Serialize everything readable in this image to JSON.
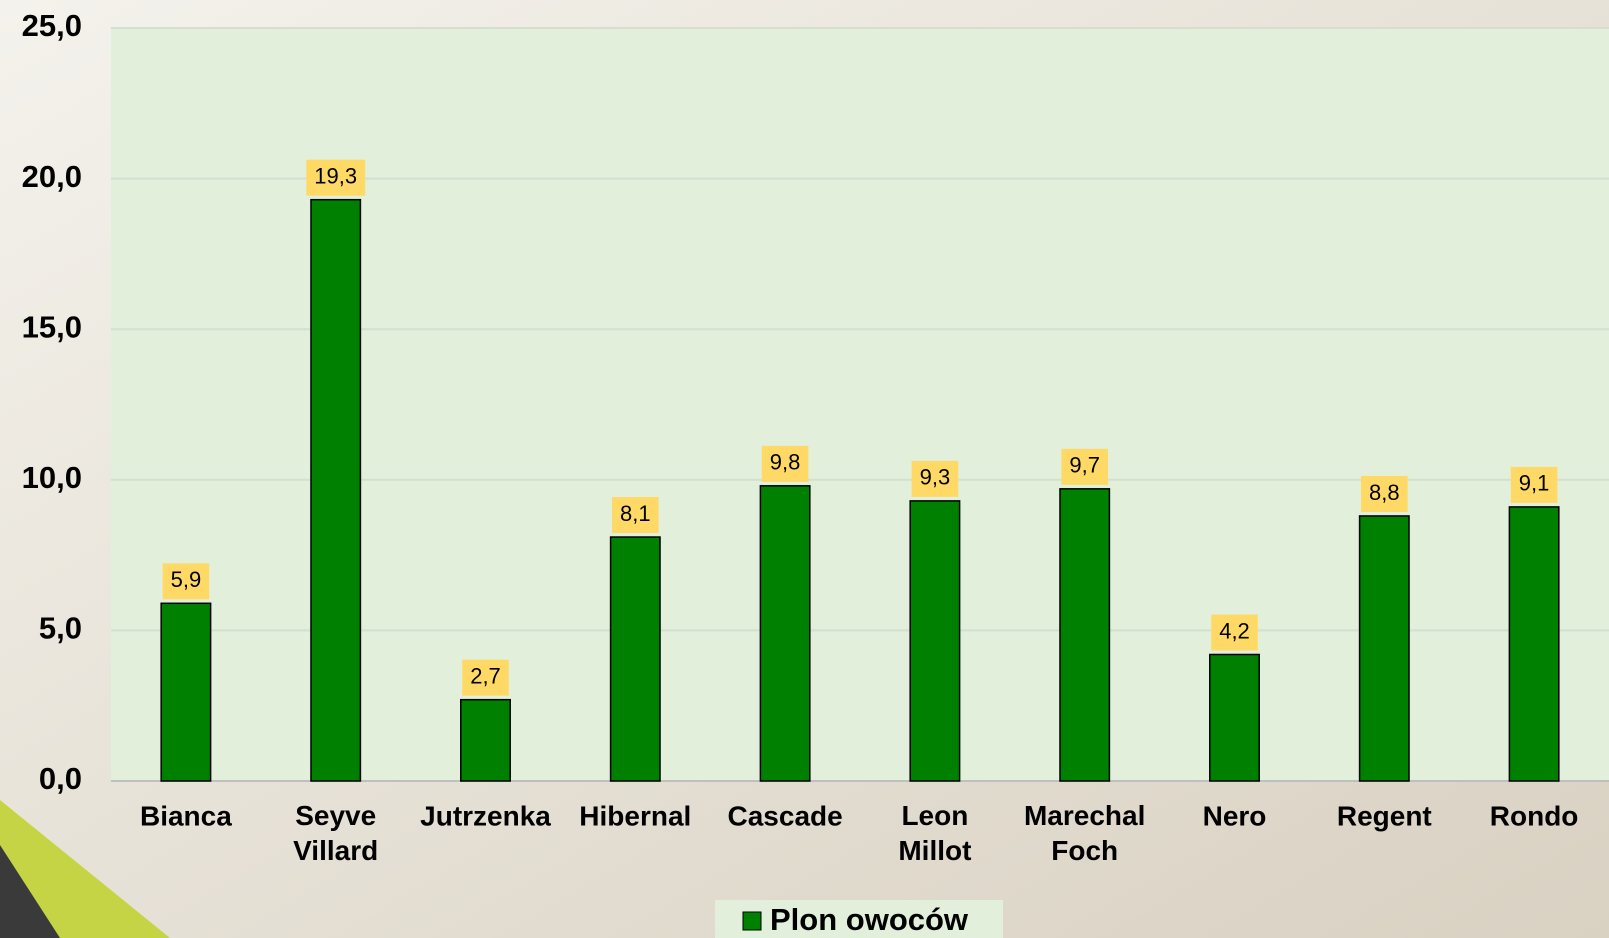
{
  "chart_data": {
    "type": "bar",
    "categories": [
      "Bianca",
      "Seyve Villard",
      "Jutrzenka",
      "Hibernal",
      "Cascade",
      "Leon Millot",
      "Marechal Foch",
      "Nero",
      "Regent",
      "Rondo"
    ],
    "series": [
      {
        "name": "Plon owoców",
        "color": "#008000",
        "values": [
          5.9,
          19.3,
          2.7,
          8.1,
          9.8,
          9.3,
          9.7,
          4.2,
          8.8,
          9.1
        ],
        "value_labels": [
          "5,9",
          "19,3",
          "2,7",
          "8,1",
          "9,8",
          "9,3",
          "9,7",
          "4,2",
          "8,8",
          "9,1"
        ]
      }
    ],
    "ylim": [
      0,
      25
    ],
    "yticks": [
      {
        "value": 0,
        "label": "0,0"
      },
      {
        "value": 5,
        "label": "5,0"
      },
      {
        "value": 10,
        "label": "10,0"
      },
      {
        "value": 15,
        "label": "15,0"
      },
      {
        "value": 20,
        "label": "20,0"
      },
      {
        "value": 25,
        "label": "25,0"
      }
    ],
    "grid": true,
    "legend": "bottom"
  }
}
